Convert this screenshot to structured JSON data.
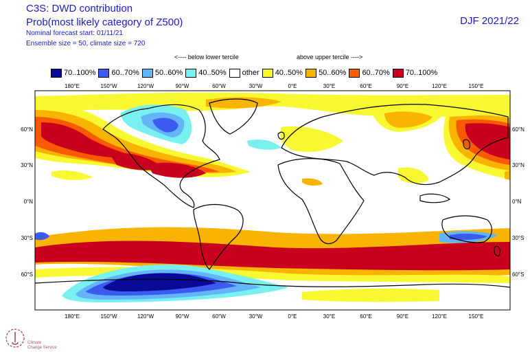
{
  "header": {
    "line1": "C3S: DWD contribution",
    "line2": "Prob(most likely category of Z500)",
    "line3": "Nominal forecast start: 01/11/21",
    "line4": "Ensemble size = 50, climate size = 720",
    "season": "DJF 2021/22"
  },
  "legend": {
    "below_label": "<---- below lower tercile",
    "above_label": "above upper tercile ---->",
    "items": [
      {
        "label": "70..100%",
        "color": "#0a0a96"
      },
      {
        "label": "60..70%",
        "color": "#3c5af0"
      },
      {
        "label": "50..60%",
        "color": "#64b4fa"
      },
      {
        "label": "40..50%",
        "color": "#78f0f0"
      },
      {
        "label": "other",
        "color": "#ffffff"
      },
      {
        "label": "40..50%",
        "color": "#f8f832"
      },
      {
        "label": "50..60%",
        "color": "#f8b400"
      },
      {
        "label": "60..70%",
        "color": "#f85a00"
      },
      {
        "label": "70..100%",
        "color": "#c8001e"
      }
    ]
  },
  "axes": {
    "lon_ticks": [
      "180°E",
      "150°W",
      "120°W",
      "90°W",
      "60°W",
      "30°W",
      "0°E",
      "30°E",
      "60°E",
      "90°E",
      "120°E",
      "150°E"
    ],
    "lat_ticks": [
      "60°N",
      "30°N",
      "0°N",
      "30°S",
      "60°S"
    ]
  },
  "logo": {
    "line1": "Climate",
    "line2": "Change Service"
  }
}
